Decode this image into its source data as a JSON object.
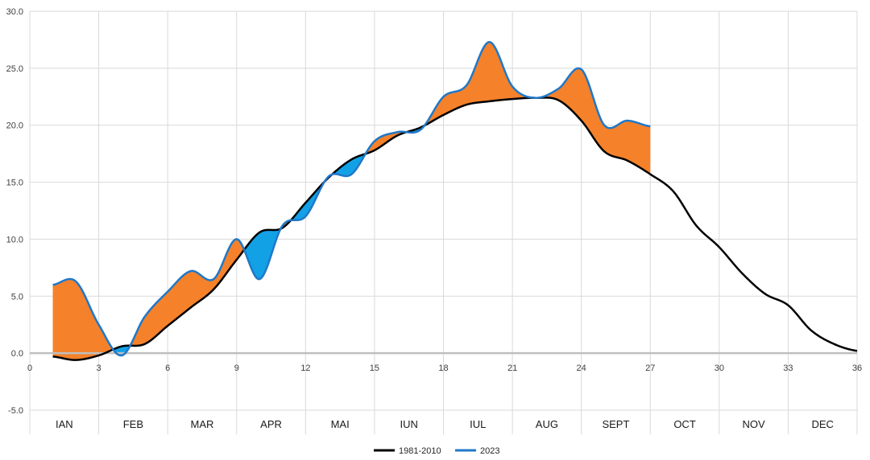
{
  "chart_data": {
    "type": "line",
    "x_axis": {
      "min": 0,
      "max": 36,
      "ticks": [
        0,
        3,
        6,
        9,
        12,
        15,
        18,
        21,
        24,
        27,
        30,
        33,
        36
      ],
      "tick_labels": [
        "0",
        "3",
        "6",
        "9",
        "12",
        "15",
        "18",
        "21",
        "24",
        "27",
        "30",
        "33",
        "36"
      ]
    },
    "y_axis": {
      "min": -5,
      "max": 30,
      "ticks": [
        -5,
        0,
        5,
        10,
        15,
        20,
        25,
        30
      ],
      "tick_labels": [
        "-5.0",
        "0.0",
        "5.0",
        "10.0",
        "15.0",
        "20.0",
        "25.0",
        "30.0"
      ]
    },
    "grid": true,
    "months": [
      "IAN",
      "FEB",
      "MAR",
      "APR",
      "MAI",
      "IUN",
      "IUL",
      "AUG",
      "SEPT",
      "OCT",
      "NOV",
      "DEC"
    ],
    "legend_position": "bottom",
    "series": [
      {
        "name": "1981-2010",
        "color": "#000000",
        "x": [
          1,
          2,
          3,
          4,
          5,
          6,
          7,
          8,
          9,
          10,
          11,
          12,
          13,
          14,
          15,
          16,
          17,
          18,
          19,
          20,
          21,
          22,
          23,
          24,
          25,
          26,
          27,
          28,
          29,
          30,
          31,
          32,
          33,
          34,
          35,
          36
        ],
        "values": [
          -0.3,
          -0.6,
          -0.2,
          0.6,
          0.8,
          2.4,
          4.0,
          5.6,
          8.2,
          10.6,
          11.0,
          13.2,
          15.4,
          17.0,
          17.8,
          19.1,
          19.8,
          20.9,
          21.8,
          22.1,
          22.3,
          22.4,
          22.2,
          20.4,
          17.7,
          16.9,
          15.7,
          14.2,
          11.2,
          9.3,
          7.0,
          5.2,
          4.2,
          2.0,
          0.8,
          0.2
        ]
      },
      {
        "name": "2023",
        "color": "#1f78c8",
        "x": [
          1,
          2,
          3,
          4,
          5,
          6,
          7,
          8,
          9,
          10,
          11,
          12,
          13,
          14,
          15,
          16,
          17,
          18,
          19,
          20,
          21,
          22,
          23,
          24,
          25,
          26,
          27
        ],
        "values": [
          6.0,
          6.3,
          2.5,
          -0.2,
          3.2,
          5.4,
          7.2,
          6.5,
          10.0,
          6.5,
          11.2,
          12.0,
          15.5,
          15.7,
          18.6,
          19.4,
          19.6,
          22.5,
          23.5,
          27.3,
          23.4,
          22.4,
          23.2,
          24.9,
          20.0,
          20.4,
          19.9
        ]
      }
    ],
    "fill_colors": {
      "above": "#f5812a",
      "below": "#13a1e6"
    }
  }
}
